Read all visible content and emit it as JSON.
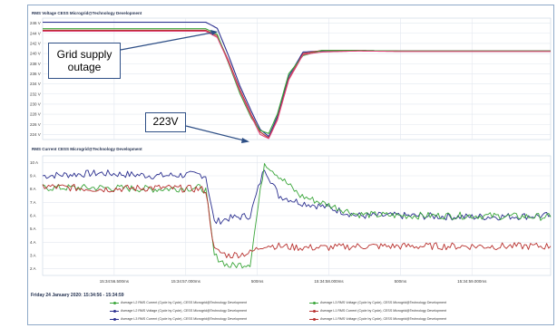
{
  "colors": {
    "green": "#3aa63a",
    "navy": "#2b2f8f",
    "red": "#b8302e",
    "pink": "#e0447a",
    "grid": "#e2e7ef",
    "callout_border": "#2e4f86",
    "arrow": "#2e4f86"
  },
  "callouts": {
    "outage": "Grid supply outage",
    "min_voltage": "223V"
  },
  "date_range": "Friday 24 January 2020: 15:34:56 - 15:34:59",
  "legend": [
    {
      "label": "Average L2 RMS Current (Cycle by Cycle), CESS Microgrid@Technology Development",
      "color": "green"
    },
    {
      "label": "Average L3 RMS Voltage (Cycle by Cycle), CESS Microgrid@Technology Development",
      "color": "green"
    },
    {
      "label": "Average L2 RMS Voltage (Cycle by Cycle), CESS Microgrid@Technology Development",
      "color": "navy"
    },
    {
      "label": "Average L1 RMS Current (Cycle by Cycle), CESS Microgrid@Technology Development",
      "color": "red"
    },
    {
      "label": "Average L3 RMS Current (Cycle by Cycle), CESS Microgrid@Technology Development",
      "color": "navy"
    },
    {
      "label": "Average L1 RMS Voltage (Cycle by Cycle), CESS Microgrid@Technology Development",
      "color": "red"
    }
  ],
  "chart_data": [
    {
      "type": "line",
      "title": "RMS Voltage CESS Microgrid@Technology Development",
      "ylim": [
        223,
        247
      ],
      "y_ticks": [
        "224 V",
        "226 V",
        "228 V",
        "230 V",
        "232 V",
        "234 V",
        "236 V",
        "238 V",
        "240 V",
        "242 V",
        "244 V",
        "246 V"
      ],
      "x": [
        56.0,
        57.0,
        57.14,
        57.22,
        57.3,
        57.38,
        57.46,
        57.52,
        57.58,
        57.64,
        57.72,
        57.82,
        57.95,
        58.2,
        58.5,
        59.0,
        59.3,
        59.55
      ],
      "series": [
        {
          "color": "navy",
          "values": [
            246.2,
            246.2,
            246.2,
            245.0,
            239.5,
            233.5,
            228.5,
            225.0,
            223.6,
            227.5,
            235.5,
            240.3,
            240.5,
            240.6,
            240.5,
            240.5,
            240.5,
            240.5
          ]
        },
        {
          "color": "red",
          "values": [
            244.6,
            244.6,
            244.6,
            243.5,
            238.5,
            232.8,
            227.8,
            224.5,
            223.3,
            227.0,
            235.0,
            240.0,
            240.6,
            240.6,
            240.5,
            240.5,
            240.5,
            240.5
          ]
        },
        {
          "color": "green",
          "values": [
            244.9,
            244.9,
            244.9,
            243.8,
            238.0,
            232.0,
            227.2,
            224.8,
            224.2,
            228.0,
            236.0,
            239.6,
            240.6,
            240.6,
            240.5,
            240.5,
            240.5,
            240.5
          ]
        },
        {
          "color": "pink",
          "values": [
            244.4,
            244.4,
            244.4,
            243.2,
            238.2,
            232.5,
            227.5,
            224.0,
            223.2,
            226.8,
            234.8,
            239.8,
            240.3,
            240.5,
            240.4,
            240.4,
            240.4,
            240.4
          ]
        }
      ]
    },
    {
      "type": "line",
      "title": "RMS Current CESS Microgrid@Technology Development",
      "ylim": [
        1.5,
        10.5
      ],
      "y_ticks": [
        "2 A",
        "3 A",
        "4 A",
        "5 A",
        "6 A",
        "7 A",
        "8 A",
        "9 A",
        "10 A"
      ],
      "x_ticks": [
        "15:34:56.500ms",
        "15:34:57.000ms",
        "500ms",
        "15:34:58.000ms",
        "500ms",
        "15:34:59.000ms"
      ],
      "x_tick_values": [
        56.5,
        57.0,
        57.5,
        58.0,
        58.5,
        59.0
      ],
      "x": [
        56.0,
        56.4,
        56.8,
        57.1,
        57.14,
        57.2,
        57.3,
        57.45,
        57.55,
        57.65,
        57.8,
        58.0,
        58.2,
        58.5,
        59.0,
        59.55
      ],
      "series": [
        {
          "color": "navy",
          "values": [
            9.0,
            9.2,
            9.0,
            9.1,
            9.0,
            5.5,
            5.8,
            6.0,
            9.6,
            7.5,
            7.0,
            6.6,
            6.0,
            6.0,
            5.9,
            6.0
          ]
        },
        {
          "color": "green",
          "values": [
            8.1,
            8.1,
            8.0,
            8.1,
            7.9,
            3.0,
            2.2,
            2.4,
            10.0,
            9.0,
            7.5,
            6.8,
            6.1,
            6.0,
            6.0,
            5.9
          ]
        },
        {
          "color": "red",
          "values": [
            8.2,
            8.0,
            8.1,
            8.0,
            7.9,
            3.4,
            3.0,
            3.2,
            3.8,
            3.7,
            3.6,
            3.6,
            3.7,
            3.7,
            3.7,
            3.7
          ]
        }
      ]
    }
  ]
}
